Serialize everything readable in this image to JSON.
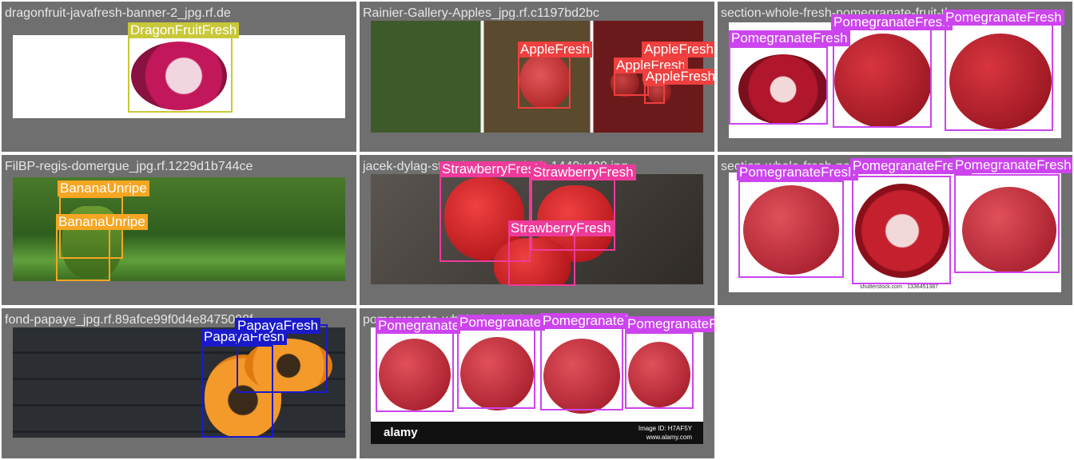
{
  "colors": {
    "background": "#6f6f6f",
    "dragonfruit": "#c8c83a",
    "apple": "#ef3f3f",
    "pomegranate": "#cc44ee",
    "banana": "#f5a623",
    "strawberry": "#ee3a9a",
    "papaya": "#1a1acc"
  },
  "tiles": [
    {
      "title": "dragonfruit-javafresh-banner-2_jpg.rf.de",
      "labels": [
        "DragonFruitFresh"
      ]
    },
    {
      "title": "Rainier-Gallery-Apples_jpg.rf.c1197bd2bc",
      "labels": [
        "AppleFresh",
        "AppleFresh",
        "AppleFresh",
        "AppleFresh"
      ]
    },
    {
      "title": "section-whole-fresh-pomegranate-fruit-th",
      "labels": [
        "PomegranateFresh",
        "PomegranateFresh",
        "PomegranateFresh"
      ]
    },
    {
      "title": "FilBP-regis-domergue_jpg.rf.1229d1b744ce",
      "labels": [
        "BananaUnripe",
        "BananaUnripe"
      ]
    },
    {
      "title": "jacek-dylag-strawberry-unsplash-1440x400.jpg",
      "labels": [
        "StrawberryFresh",
        "StrawberryFresh",
        "StrawberryFresh"
      ]
    },
    {
      "title": "section-whole-fresh-pomegranates-isolated",
      "labels": [
        "PomegranateFresh",
        "PomegranateFresh",
        "PomegranateFresh"
      ],
      "watermark": "shutterstock.com · 1336451387"
    },
    {
      "title": "fond-papaye_jpg.rf.89afce99f0d4e8475098f",
      "labels": [
        "PapayaFresh",
        "PapayaFresh"
      ]
    },
    {
      "title": "pomegranate-whole-fresh-alamy-set.jpg",
      "labels": [
        "PomegranateFresh",
        "PomegranateFresh",
        "PomegranateFresh",
        "PomegranateFresh"
      ],
      "brand": "alamy",
      "footer_id": "Image ID: H7AF5Y",
      "footer_url": "www.alamy.com"
    }
  ]
}
